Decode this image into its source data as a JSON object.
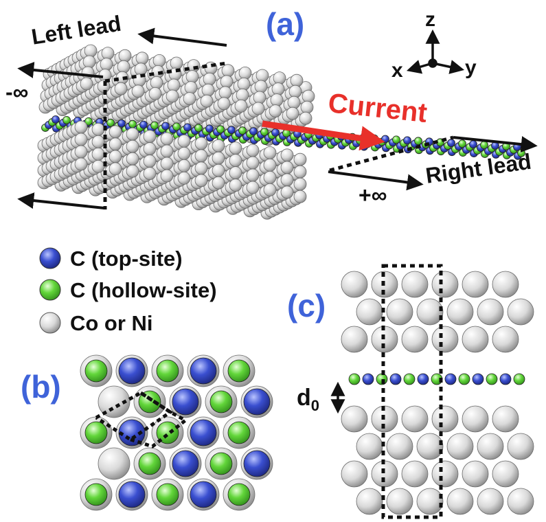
{
  "panels": {
    "a": "(a)",
    "b": "(b)",
    "c": "(c)"
  },
  "leads": {
    "left": "Left lead",
    "right": "Right lead"
  },
  "infinity": {
    "minus": "-∞",
    "plus": "+∞"
  },
  "current_label": "Current",
  "axes": {
    "x": "x",
    "y": "y",
    "z": "z"
  },
  "legend": [
    {
      "label": "C (top-site)",
      "color": "#3a4fd0"
    },
    {
      "label": "C (hollow-site)",
      "color": "#6ee03a"
    },
    {
      "label": "Co or Ni",
      "color": "#d7d7d7"
    }
  ],
  "separation": {
    "symbol": "d",
    "subscript": "0"
  },
  "colors": {
    "panel_label": "#3f63d9",
    "current_arrow": "#e8302a",
    "metal_atom": "#d7d7d7",
    "carbon_top": "#3a4fd0",
    "carbon_hollow": "#6ee03a"
  }
}
